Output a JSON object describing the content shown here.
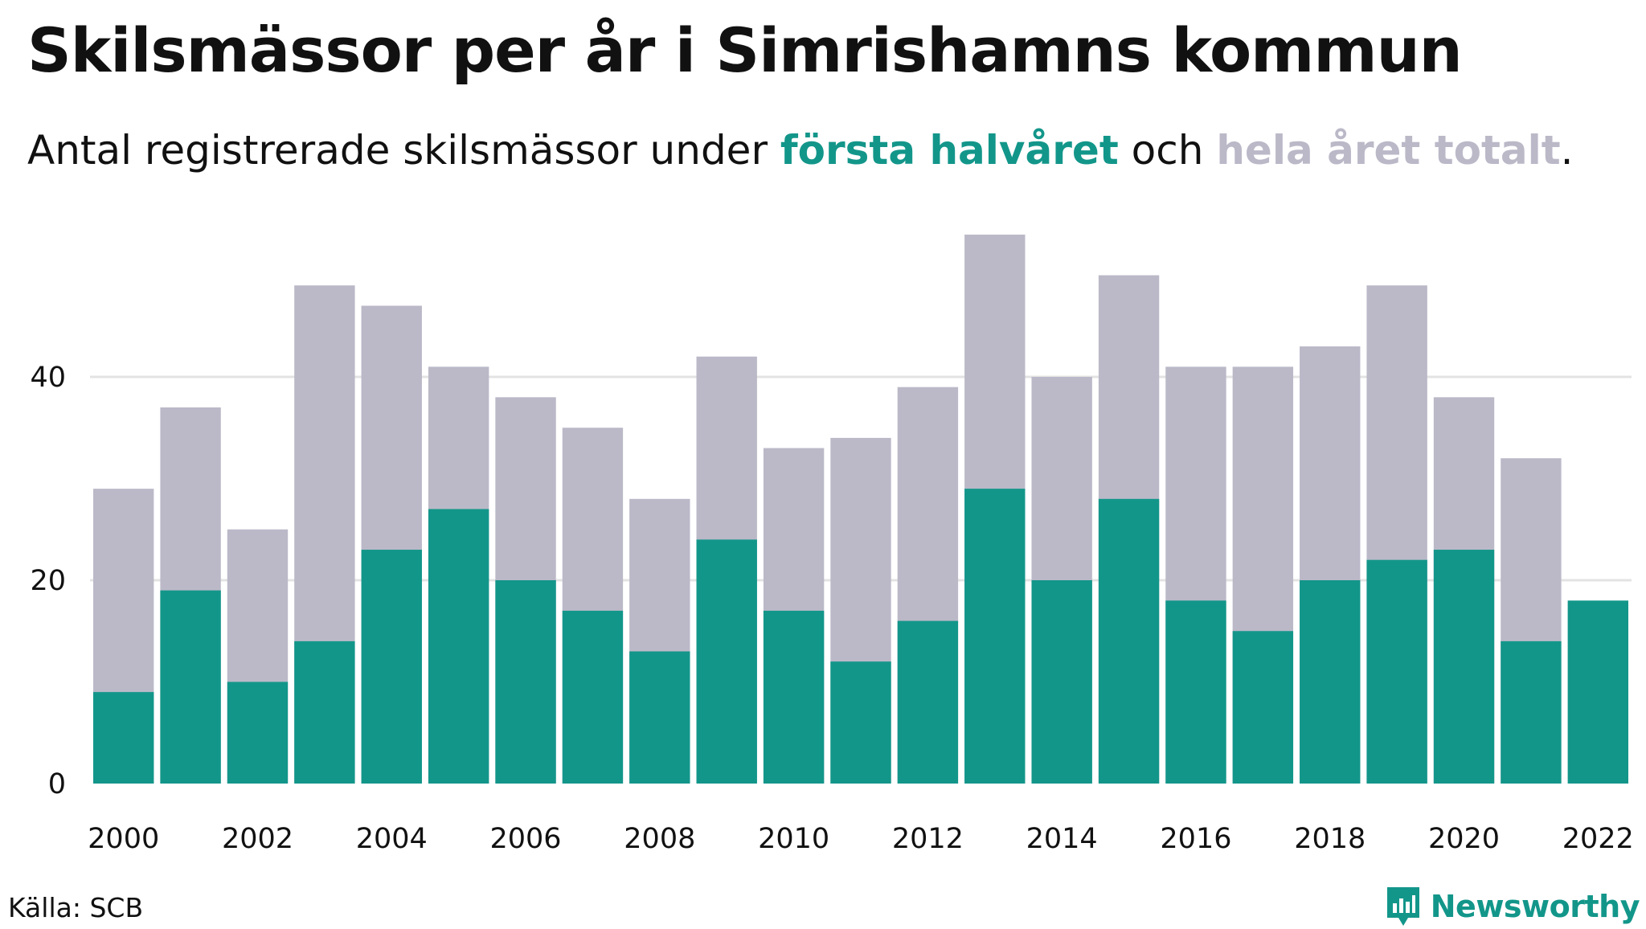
{
  "header": {
    "title": "Skilsmässor per år i Simrishamns kommun",
    "subtitle_prefix": "Antal registrerade skilsmässor under ",
    "subtitle_hl1": "första halvåret",
    "subtitle_mid": " och ",
    "subtitle_hl2": "hela året totalt",
    "subtitle_suffix": "."
  },
  "footer": {
    "source": "Källa: SCB",
    "brand": "Newsworthy",
    "brand_icon": "newsworthy-logo-icon"
  },
  "colors": {
    "first_half": "#13968a",
    "full_year": "#bbb9c8",
    "grid": "#e3e3e3",
    "text": "#111111"
  },
  "chart_data": {
    "type": "bar",
    "categories": [
      "2000",
      "2001",
      "2002",
      "2003",
      "2004",
      "2005",
      "2006",
      "2007",
      "2008",
      "2009",
      "2010",
      "2011",
      "2012",
      "2013",
      "2014",
      "2015",
      "2016",
      "2017",
      "2018",
      "2019",
      "2020",
      "2021",
      "2022"
    ],
    "series": [
      {
        "name": "hela året totalt",
        "values": [
          29,
          37,
          25,
          49,
          47,
          41,
          38,
          35,
          28,
          42,
          33,
          34,
          39,
          54,
          40,
          50,
          41,
          41,
          43,
          49,
          38,
          32,
          null
        ]
      },
      {
        "name": "första halvåret",
        "values": [
          9,
          19,
          10,
          14,
          23,
          27,
          20,
          17,
          13,
          24,
          17,
          12,
          16,
          29,
          20,
          28,
          18,
          15,
          20,
          22,
          23,
          14,
          18
        ]
      }
    ],
    "xticks": [
      "2000",
      "2002",
      "2004",
      "2006",
      "2008",
      "2010",
      "2012",
      "2014",
      "2016",
      "2018",
      "2020",
      "2022"
    ],
    "yticks": [
      0,
      20,
      40
    ],
    "ylim": [
      0,
      55
    ],
    "grid": true
  }
}
